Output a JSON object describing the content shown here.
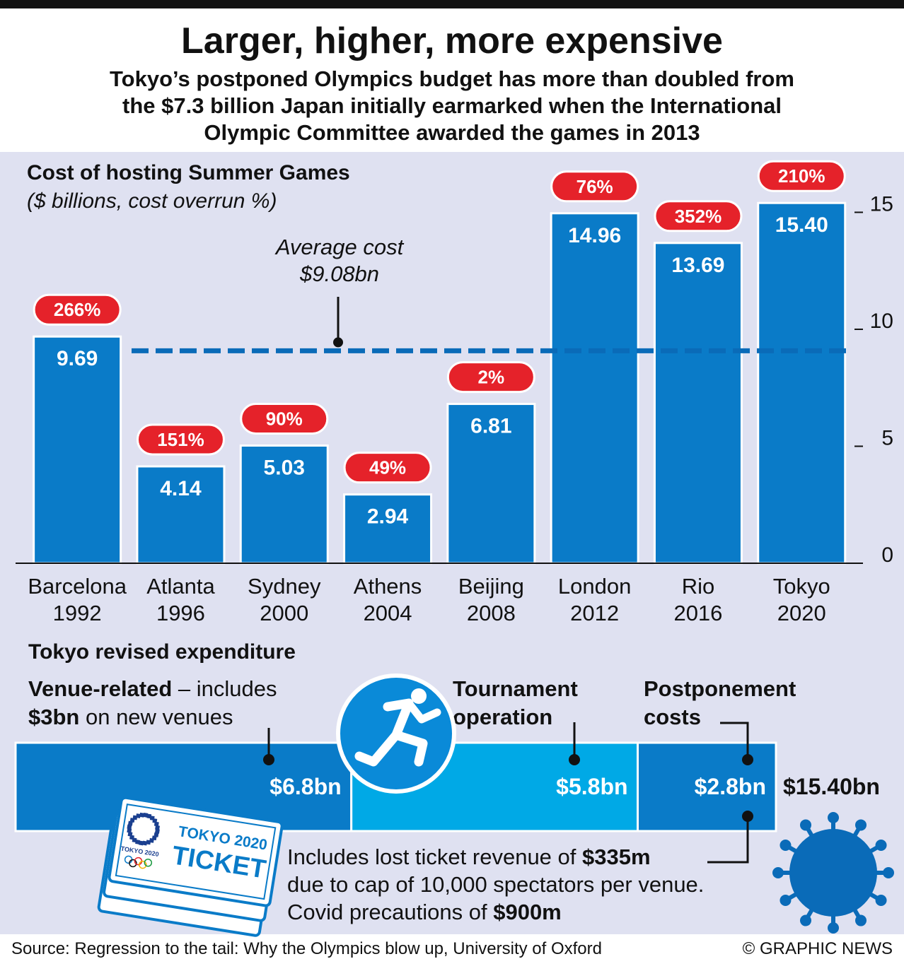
{
  "header": {
    "title": "Larger, higher, more expensive",
    "subtitle": [
      "Tokyo’s postponed Olympics budget has more than doubled from",
      "the $7.3 billion Japan initially earmarked when the International",
      "Olympic Committee awarded the games in 2013"
    ]
  },
  "chart_data": [
    {
      "type": "bar",
      "title": "Cost of hosting Summer Games",
      "subtitle": "($ billions, cost overrun %)",
      "categories": [
        "Barcelona 1992",
        "Atlanta 1996",
        "Sydney 2000",
        "Athens 2004",
        "Beijing 2008",
        "London 2012",
        "Rio 2016",
        "Tokyo 2020"
      ],
      "values": [
        9.69,
        4.14,
        5.03,
        2.94,
        6.81,
        14.96,
        13.69,
        15.4
      ],
      "value_labels": [
        "9.69",
        "4.14",
        "5.03",
        "2.94",
        "6.81",
        "14.96",
        "13.69",
        "15.40"
      ],
      "color": "#0a7bc8",
      "overrun": {
        "values": [
          266,
          151,
          90,
          49,
          2,
          76,
          352,
          210
        ],
        "value_labels": [
          "266%",
          "151%",
          "90%",
          "49%",
          "2%",
          "76%",
          "352%",
          "210%"
        ],
        "color": "#e5222a"
      },
      "reference_line": {
        "value": 9.08,
        "label": "Average cost",
        "value_label": "$9.08bn",
        "color": "#0a6bb8"
      },
      "ylim": [
        0,
        17.43
      ],
      "yticks": [
        0,
        5,
        10,
        15
      ],
      "y_axis_side": "right"
    },
    {
      "type": "stacked_bar",
      "title": "Tokyo revised expenditure",
      "series": [
        {
          "name": "Venue-related",
          "note": [
            " – includes",
            "$3bn",
            " on new venues"
          ],
          "color": "#0a7bc8",
          "values": [
            6.8
          ],
          "value_labels": [
            "$6.8bn"
          ]
        },
        {
          "name": "Tournament operation",
          "color": "#00a9e6",
          "values": [
            5.8
          ],
          "value_labels": [
            "$5.8bn"
          ]
        },
        {
          "name": "Postponement costs",
          "color": "#0a7bc8",
          "values": [
            2.8
          ],
          "value_labels": [
            "$2.8bn"
          ]
        }
      ],
      "total": 15.4,
      "total_label": "$15.40bn",
      "note": [
        "Includes lost ticket revenue of ",
        "$335m",
        "due to cap of 10,000 spectators per venue.",
        "Covid precautions of ",
        "$900m"
      ],
      "ticket": {
        "line1": "TOKYO 2020",
        "line2": "TICKET",
        "emblem": "TOKYO 2020"
      }
    }
  ],
  "footer": {
    "source": "Source: Regression to the tail: Why the Olympics blow up, University of Oxford",
    "credit": "© GRAPHIC NEWS"
  }
}
